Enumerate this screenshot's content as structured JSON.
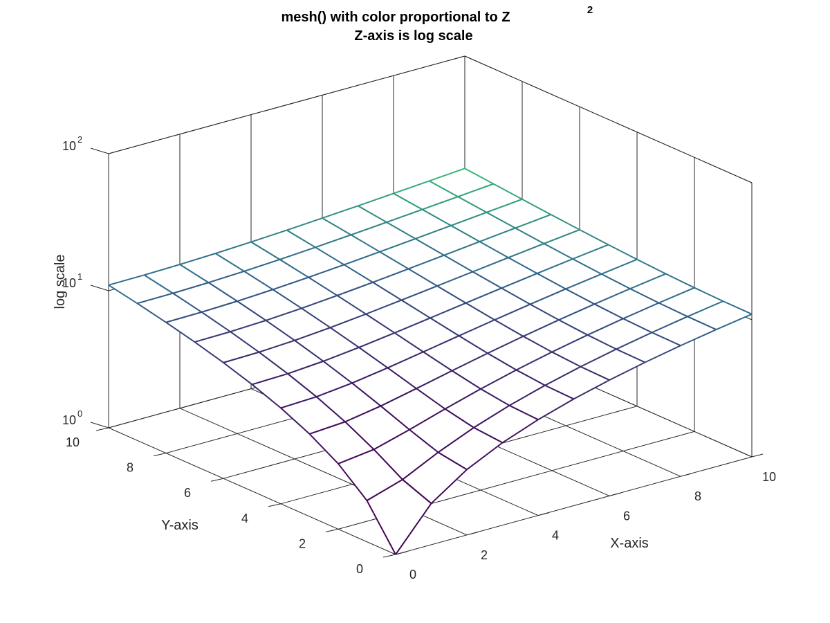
{
  "chart_data": {
    "type": "surface-mesh",
    "title_line1": "mesh() with color proportional to Z",
    "title_superscript": "2",
    "title_line2": "Z-axis is log scale",
    "xlabel": "X-axis",
    "ylabel": "Y-axis",
    "zlabel": "log scale",
    "x": [
      0,
      1,
      2,
      3,
      4,
      5,
      6,
      7,
      8,
      9,
      10
    ],
    "y": [
      0,
      1,
      2,
      3,
      4,
      5,
      6,
      7,
      8,
      9,
      10
    ],
    "z_function": "sqrt(x^2 + y^2) + 1",
    "xlim": [
      0,
      10
    ],
    "ylim": [
      0,
      10
    ],
    "zlim": [
      1,
      100
    ],
    "zscale": "log",
    "x_ticks": [
      "0",
      "2",
      "4",
      "6",
      "8",
      "10"
    ],
    "y_ticks": [
      "0",
      "2",
      "4",
      "6",
      "8",
      "10"
    ],
    "z_ticks": [
      {
        "base": "10",
        "exp": "0",
        "value": 1
      },
      {
        "base": "10",
        "exp": "1",
        "value": 10
      },
      {
        "base": "10",
        "exp": "2",
        "value": 100
      }
    ],
    "colormap": [
      "#440154",
      "#31688e",
      "#35b779"
    ],
    "grid": true
  }
}
